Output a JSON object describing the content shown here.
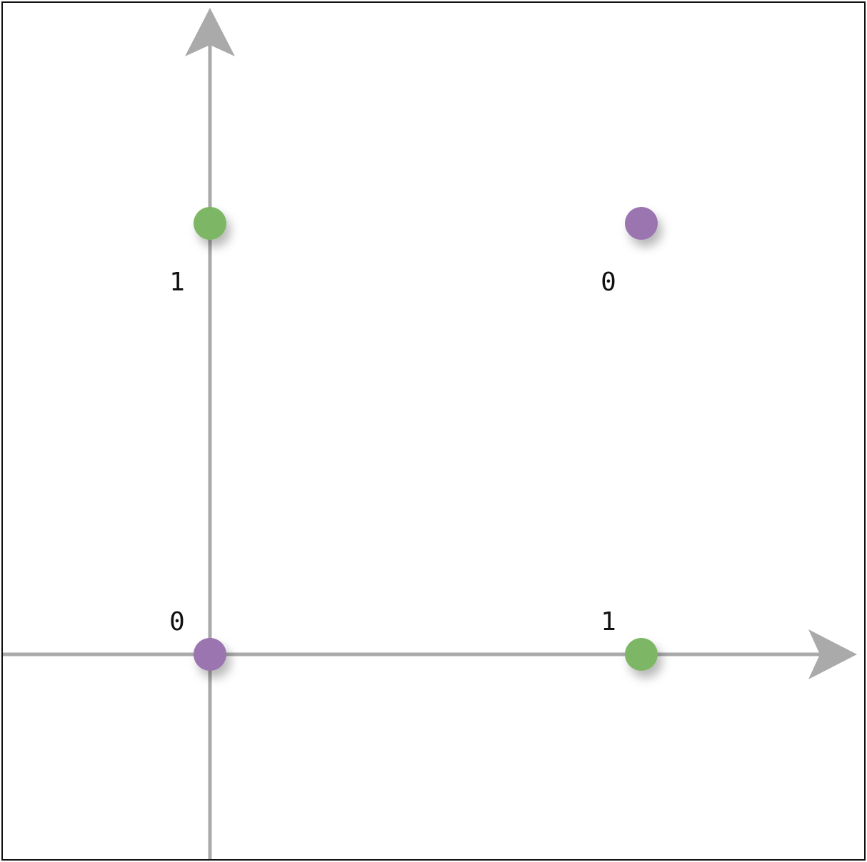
{
  "chart_data": {
    "type": "scatter",
    "title": "",
    "xlabel": "",
    "ylabel": "",
    "grid": false,
    "legend": "none",
    "xlim": [
      -0.48,
      1.5
    ],
    "ylim": [
      -0.48,
      1.5
    ],
    "points": [
      {
        "x": 0,
        "y": 0,
        "label": "0",
        "color": "#9b74b0"
      },
      {
        "x": 1,
        "y": 0,
        "label": "1",
        "color": "#7db765"
      },
      {
        "x": 0,
        "y": 1,
        "label": "1",
        "color": "#7db765"
      },
      {
        "x": 1,
        "y": 1,
        "label": "0",
        "color": "#9b74b0"
      }
    ]
  },
  "colors": {
    "axis": "#aaaaaa",
    "class_zero": "#9b74b0",
    "class_one": "#7db765",
    "border": "#111111"
  }
}
